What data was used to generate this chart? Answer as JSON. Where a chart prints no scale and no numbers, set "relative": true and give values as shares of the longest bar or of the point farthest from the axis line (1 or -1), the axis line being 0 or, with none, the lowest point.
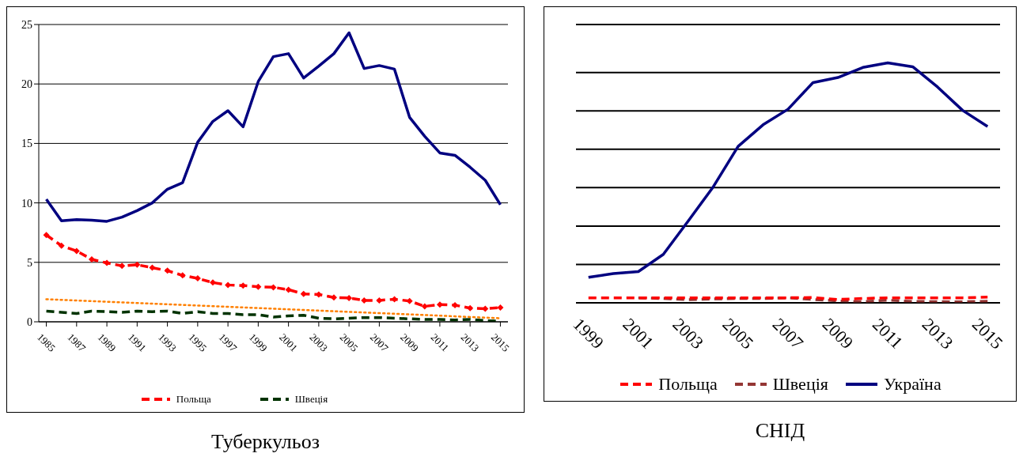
{
  "chart_data": [
    {
      "type": "line",
      "title": "Туберкульоз",
      "x": [
        1985,
        1986,
        1987,
        1988,
        1989,
        1990,
        1991,
        1992,
        1993,
        1994,
        1995,
        1996,
        1997,
        1998,
        1999,
        2000,
        2001,
        2002,
        2003,
        2004,
        2005,
        2006,
        2007,
        2008,
        2009,
        2010,
        2011,
        2012,
        2013,
        2014,
        2015
      ],
      "xlim": [
        1984.5,
        2015.5
      ],
      "xticks": [
        1985,
        1987,
        1989,
        1991,
        1993,
        1995,
        1997,
        1999,
        2001,
        2003,
        2005,
        2007,
        2009,
        2011,
        2013,
        2015
      ],
      "ylim": [
        0,
        25
      ],
      "yticks": [
        0,
        5,
        10,
        15,
        20,
        25
      ],
      "grid": "y",
      "legend": "bottom",
      "series": [
        {
          "name": "Польща",
          "color": "#ff0000",
          "line_style": "dashed",
          "marker": "diamond",
          "values": [
            7.3,
            6.4,
            5.95,
            5.25,
            4.95,
            4.7,
            4.8,
            4.55,
            4.3,
            3.9,
            3.65,
            3.3,
            3.1,
            3.05,
            2.95,
            2.9,
            2.7,
            2.35,
            2.3,
            2.05,
            2,
            1.8,
            1.8,
            1.9,
            1.75,
            1.3,
            1.45,
            1.4,
            1.15,
            1.1,
            1.2
          ]
        },
        {
          "name": "Швеція",
          "color": "#003300",
          "line_style": "dashed",
          "values": [
            0.9,
            0.8,
            0.7,
            0.9,
            0.85,
            0.8,
            0.9,
            0.85,
            0.9,
            0.7,
            0.85,
            0.7,
            0.7,
            0.6,
            0.6,
            0.4,
            0.5,
            0.55,
            0.3,
            0.25,
            0.3,
            0.35,
            0.35,
            0.3,
            0.25,
            0.2,
            0.2,
            0.15,
            0.2,
            0.1,
            0.05
          ]
        },
        {
          "color": "#000080",
          "line_style": "solid",
          "values": [
            10.3,
            8.5,
            8.6,
            8.55,
            8.45,
            8.8,
            9.35,
            10,
            11.15,
            11.7,
            15.1,
            16.85,
            17.75,
            16.4,
            20.2,
            22.3,
            22.55,
            20.5,
            21.5,
            22.55,
            24.3,
            21.3,
            21.55,
            21.25,
            17.2,
            15.6,
            14.2,
            14,
            13,
            11.9,
            9.85
          ]
        },
        {
          "type": "line",
          "color": "#ff8000",
          "line_style": "dotted",
          "x": [
            1985,
            2015
          ],
          "values": [
            1.9,
            0.3
          ]
        }
      ]
    },
    {
      "type": "line",
      "title": "СНІД",
      "relative": true,
      "grid": "y",
      "legend": "bottom",
      "categories": [
        "1999",
        null,
        "2001",
        null,
        "2003",
        null,
        "2005",
        null,
        "2007",
        null,
        "2009",
        null,
        "2011",
        null,
        "2013",
        null,
        "2015"
      ],
      "series": [
        {
          "name": "Польща",
          "color": "#ff0000",
          "line_style": "dashed",
          "values": [
            0.021,
            0.021,
            0.021,
            0.021,
            0.021,
            0.021,
            0.021,
            0.021,
            0.021,
            0.022,
            0.014,
            0.018,
            0.021,
            0.021,
            0.021,
            0.021,
            0.024
          ]
        },
        {
          "name": "Швеція",
          "color": "#943634",
          "line_style": "dashed",
          "values": [
            null,
            null,
            0.021,
            0.018,
            0.013,
            0.016,
            0.018,
            0.018,
            0.021,
            0.014,
            0.008,
            0.005,
            0.011,
            0.006,
            0.005,
            0.004,
            0.007
          ]
        },
        {
          "name": "Україна",
          "color": "#000080",
          "line_style": "solid",
          "values": [
            0.106,
            0.122,
            0.13,
            0.202,
            0.341,
            0.483,
            0.652,
            0.742,
            0.807,
            0.918,
            0.939,
            0.981,
            1,
            0.984,
            0.899,
            0.802,
            0.735
          ]
        }
      ]
    }
  ]
}
